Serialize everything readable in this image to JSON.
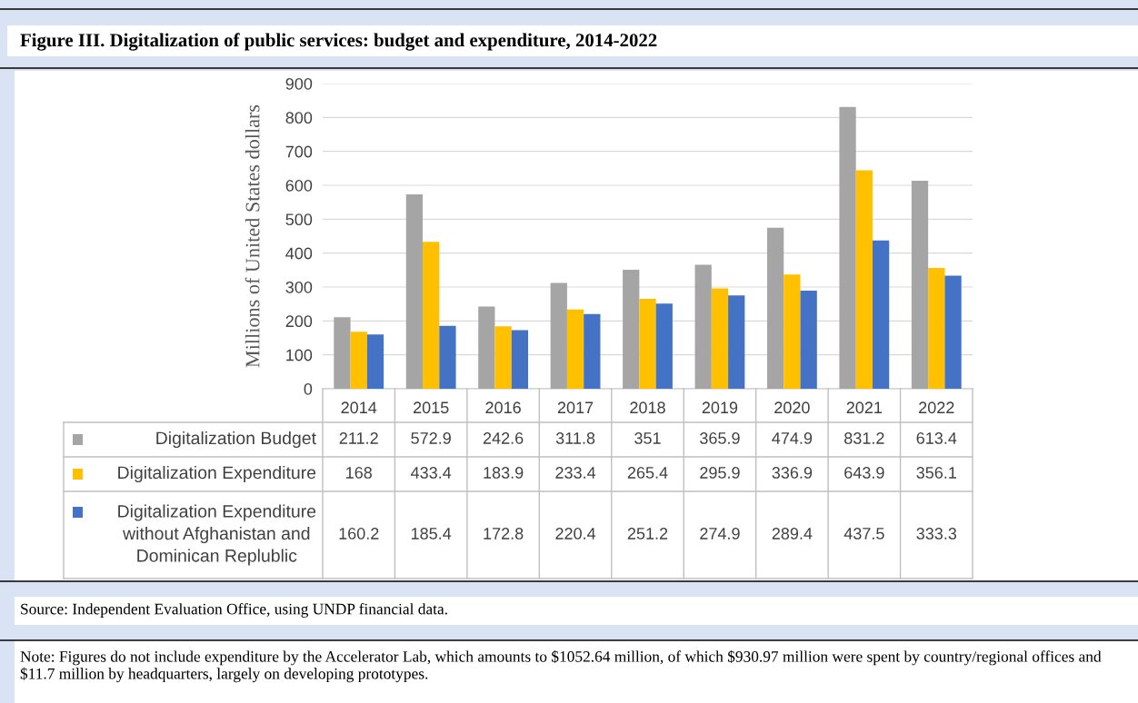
{
  "chart_data": {
    "type": "bar",
    "title": "Figure III. Digitalization of public services: budget and expenditure, 2014-2022",
    "ylabel": "Millions of United States dollars",
    "categories": [
      "2014",
      "2015",
      "2016",
      "2017",
      "2018",
      "2019",
      "2020",
      "2021",
      "2022"
    ],
    "series": [
      {
        "name": "Digitalization Budget",
        "color": "#a5a5a5",
        "values": [
          211.2,
          572.9,
          242.6,
          311.8,
          351,
          365.9,
          474.9,
          831.2,
          613.4
        ]
      },
      {
        "name": "Digitalization Expenditure",
        "color": "#ffc000",
        "values": [
          168,
          433.4,
          183.9,
          233.4,
          265.4,
          295.9,
          336.9,
          643.9,
          356.1
        ]
      },
      {
        "name": "Digitalization Expenditure\nwithout Afghanistan and\nDominican Replublic",
        "color": "#4472c4",
        "values": [
          160.2,
          185.4,
          172.8,
          220.4,
          251.2,
          274.9,
          289.4,
          437.5,
          333.3
        ]
      }
    ],
    "ylim": [
      0,
      900
    ],
    "yticks": [
      0,
      100,
      200,
      300,
      400,
      500,
      600,
      700,
      800,
      900
    ],
    "grid": "y",
    "data_labels": true,
    "legend": "bottom",
    "annotations": [
      "Source: Independent Evaluation Office, using UNDP financial data.",
      "Note: Figures do not include expenditure by the Accelerator Lab, which amounts to $1052.64 million, of which $930.97 million were spent by country/regional offices and $11.7 million by headquarters, largely on developing prototypes."
    ]
  }
}
